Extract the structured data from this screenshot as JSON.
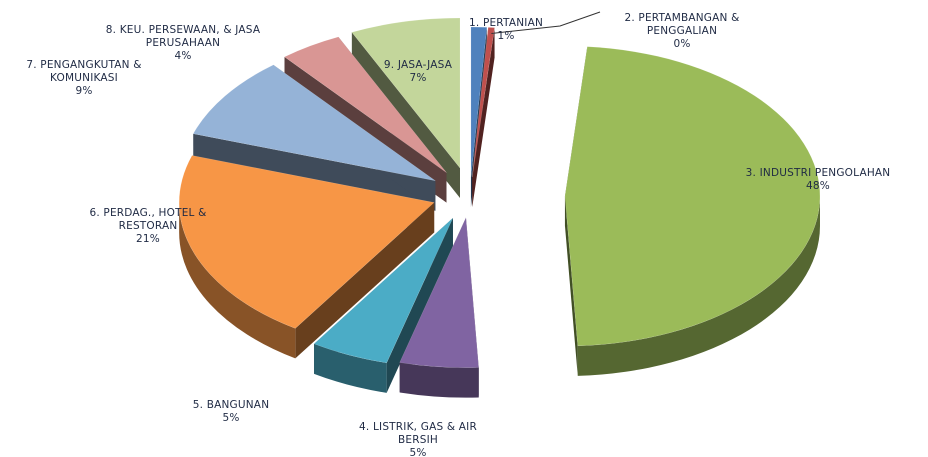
{
  "chart_data": {
    "type": "pie",
    "style": "3d-exploded",
    "title": "",
    "legend": "none",
    "slices": [
      {
        "label": "1. PERTANIAN",
        "value": 1,
        "percent_label": "1%",
        "color": "#4f81bd"
      },
      {
        "label": "2. PERTAMBANGAN & PENGGALIAN",
        "value": 0.4,
        "percent_label": "0%",
        "color": "#c0504d"
      },
      {
        "label": "3. INDUSTRI PENGOLAHAN",
        "value": 48,
        "percent_label": "48%",
        "color": "#9bbb59"
      },
      {
        "label": "4. LISTRIK, GAS & AIR BERSIH",
        "value": 5,
        "percent_label": "5%",
        "color": "#8064a2"
      },
      {
        "label": "5. BANGUNAN",
        "value": 5,
        "percent_label": "5%",
        "color": "#4bacc6"
      },
      {
        "label": "6. PERDAG., HOTEL & RESTORAN",
        "value": 21,
        "percent_label": "21%",
        "color": "#f79646"
      },
      {
        "label": "7. PENGANGKUTAN & KOMUNIKASI",
        "value": 9,
        "percent_label": "9%",
        "color": "#95b3d7"
      },
      {
        "label": "8. KEU. PERSEWAAN, & JASA PERUSAHAAN",
        "value": 4,
        "percent_label": "4%",
        "color": "#d99694"
      },
      {
        "label": "9. JASA-JASA",
        "value": 7,
        "percent_label": "7%",
        "color": "#c3d69b"
      }
    ]
  }
}
